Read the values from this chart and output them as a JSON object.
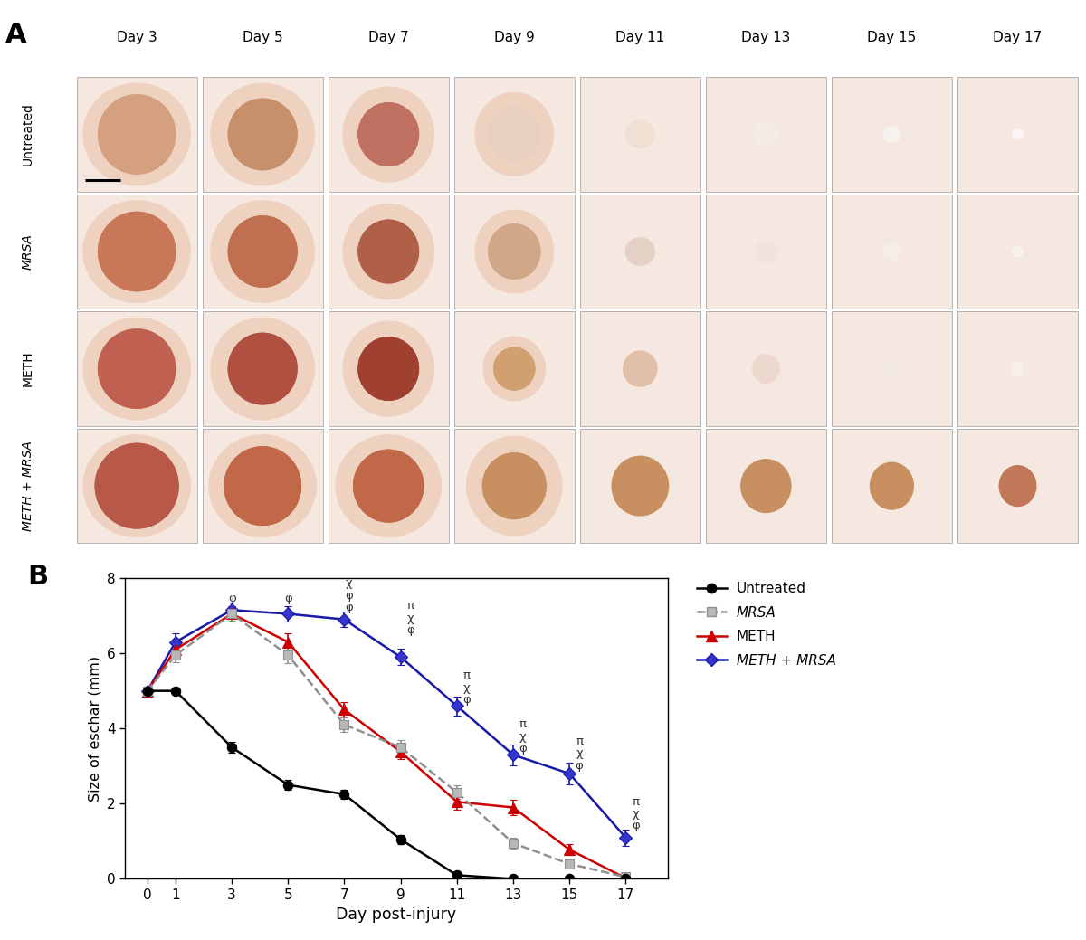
{
  "panel_A_label": "A",
  "panel_B_label": "B",
  "col_labels": [
    "Day 3",
    "Day 5",
    "Day 7",
    "Day 9",
    "Day 11",
    "Day 13",
    "Day 15",
    "Day 17"
  ],
  "row_labels_display": [
    "Untreated",
    "MRSA",
    "METH",
    "METH + MRSA"
  ],
  "row_italic": [
    false,
    true,
    false,
    true
  ],
  "days": [
    0,
    1,
    3,
    5,
    7,
    9,
    11,
    13,
    15,
    17
  ],
  "untreated_y": [
    5.0,
    5.0,
    3.5,
    2.5,
    2.25,
    1.05,
    0.1,
    0.0,
    0.0,
    0.0
  ],
  "untreated_err": [
    0.1,
    0.1,
    0.15,
    0.13,
    0.12,
    0.12,
    0.06,
    0.02,
    0.02,
    0.02
  ],
  "mrsa_y": [
    5.0,
    5.95,
    7.05,
    5.95,
    4.1,
    3.5,
    2.3,
    0.95,
    0.4,
    0.05
  ],
  "mrsa_err": [
    0.12,
    0.18,
    0.18,
    0.22,
    0.2,
    0.2,
    0.18,
    0.15,
    0.1,
    0.04
  ],
  "meth_y": [
    5.0,
    6.1,
    7.05,
    6.3,
    4.5,
    3.38,
    2.05,
    1.9,
    0.78,
    0.02
  ],
  "meth_err": [
    0.12,
    0.18,
    0.2,
    0.22,
    0.2,
    0.2,
    0.2,
    0.2,
    0.15,
    0.04
  ],
  "mm_y": [
    5.0,
    6.3,
    7.15,
    7.05,
    6.9,
    5.9,
    4.6,
    3.3,
    2.8,
    1.1
  ],
  "mm_err": [
    0.12,
    0.22,
    0.2,
    0.2,
    0.2,
    0.22,
    0.25,
    0.28,
    0.28,
    0.22
  ],
  "ylabel": "Size of eschar (mm)",
  "xlabel": "Day post-injury",
  "ylim": [
    0,
    8
  ],
  "yticks": [
    0,
    2,
    4,
    6,
    8
  ],
  "xticks": [
    0,
    1,
    3,
    5,
    7,
    9,
    11,
    13,
    15,
    17
  ],
  "color_untreated": "#000000",
  "color_mrsa": "#909090",
  "color_mrsa_face": "#b8b8b8",
  "color_meth": "#cc0000",
  "color_mm": "#1a1aaa",
  "color_mm_face": "#3535cc",
  "bg_color": "#ffffff",
  "legend_untreated": "Untreated",
  "legend_mrsa": "MRSA",
  "legend_meth": "METH",
  "legend_mm": "METH + MRSA",
  "grid_rows": 4,
  "grid_cols": 8,
  "fig_width": 12.0,
  "fig_height": 10.39,
  "cell_colors": [
    [
      "#d4a080",
      "#c8906a",
      "#c07060",
      "#e8d0c0",
      "#f0e0d4",
      "#f5ece6",
      "#f8f2ee",
      "#faf5f2"
    ],
    [
      "#c87858",
      "#c07050",
      "#b06048",
      "#d0a888",
      "#e4d0c4",
      "#f0e4dc",
      "#f5eee8",
      "#f8f2ee"
    ],
    [
      "#c06050",
      "#b05040",
      "#a04030",
      "#d0a070",
      "#e0c0a8",
      "#ecd8cc",
      "#f2e8e0",
      "#f7f0ea"
    ],
    [
      "#b85848",
      "#c06848",
      "#c06848",
      "#c89060",
      "#c89060",
      "#c89060",
      "#c89060",
      "#c07858"
    ]
  ],
  "skin_base": "#f5e8e0"
}
